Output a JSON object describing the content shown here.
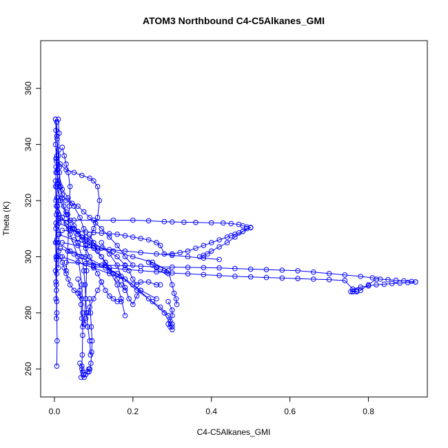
{
  "chart_data": {
    "type": "scatter",
    "title": "ATOM3 Northbound C4-C5Alkanes_GMI",
    "xlabel": "C4-C5Alkanes_GMI",
    "ylabel": "Theta (K)",
    "xlim": [
      -0.035,
      0.95
    ],
    "ylim": [
      250,
      377
    ],
    "xticks": [
      0.0,
      0.2,
      0.4,
      0.6,
      0.8
    ],
    "xtick_labels": [
      "0.0",
      "0.2",
      "0.4",
      "0.6",
      "0.8"
    ],
    "yticks": [
      260,
      280,
      300,
      320,
      340,
      360
    ],
    "ytick_labels": [
      "260",
      "280",
      "300",
      "320",
      "340",
      "360"
    ],
    "marker": "open-circle",
    "connected": true,
    "grid": false,
    "colors": {
      "series": "#0000ff",
      "axis": "#000000",
      "background": "#ffffff"
    },
    "series": [
      {
        "x": [
          0.003,
          0.006,
          0.01,
          0.013,
          0.016,
          0.02,
          0.024,
          0.03,
          0.034,
          0.04,
          0.05,
          0.06,
          0.07,
          0.08,
          0.09,
          0.1,
          0.11
        ],
        "y": [
          349,
          343,
          336,
          330,
          325,
          321,
          318,
          316,
          315,
          313,
          311,
          309,
          307,
          306,
          305,
          304,
          303
        ]
      },
      {
        "x": [
          0.004,
          0.007,
          0.012,
          0.02,
          0.03,
          0.045,
          0.06,
          0.075,
          0.09,
          0.105,
          0.12,
          0.14,
          0.16,
          0.18,
          0.2
        ],
        "y": [
          335,
          330,
          325,
          322,
          320,
          319,
          318,
          316,
          314,
          312,
          310,
          307,
          304,
          300,
          297
        ]
      },
      {
        "x": [
          0.005,
          0.015,
          0.03,
          0.05,
          0.07,
          0.09,
          0.1,
          0.11,
          0.115,
          0.11,
          0.1,
          0.09
        ],
        "y": [
          334,
          333,
          331,
          330,
          329,
          328,
          327,
          325,
          320,
          314,
          310,
          306
        ]
      },
      {
        "x": [
          0.004,
          0.01,
          0.02,
          0.035,
          0.05,
          0.065,
          0.075,
          0.08,
          0.082,
          0.08,
          0.075
        ],
        "y": [
          332,
          327,
          324,
          321,
          318,
          314,
          310,
          304,
          295,
          285,
          276
        ]
      },
      {
        "x": [
          0.006,
          0.015,
          0.03,
          0.045,
          0.06,
          0.07,
          0.075,
          0.078,
          0.08,
          0.082,
          0.085,
          0.09,
          0.092
        ],
        "y": [
          325,
          320,
          315,
          310,
          305,
          300,
          295,
          290,
          285,
          280,
          275,
          270,
          265
        ]
      },
      {
        "x": [
          0.008,
          0.02,
          0.04,
          0.06,
          0.07,
          0.072,
          0.072,
          0.071,
          0.07,
          0.068
        ],
        "y": [
          318,
          314,
          308,
          300,
          290,
          280,
          272,
          265,
          260,
          257
        ]
      },
      {
        "x": [
          0.01,
          0.03,
          0.06,
          0.09,
          0.12,
          0.14,
          0.16,
          0.17,
          0.18
        ],
        "y": [
          315,
          312,
          308,
          304,
          300,
          295,
          290,
          285,
          279
        ]
      },
      {
        "x": [
          0.012,
          0.04,
          0.08,
          0.12,
          0.16,
          0.18,
          0.19,
          0.2,
          0.21,
          0.22,
          0.24,
          0.26,
          0.27
        ],
        "y": [
          312,
          310,
          307,
          303,
          300,
          297,
          295,
          292,
          290,
          291,
          291,
          290,
          290
        ]
      },
      {
        "x": [
          0.01,
          0.05,
          0.1,
          0.15,
          0.2,
          0.25,
          0.29,
          0.3,
          0.305,
          0.31,
          0.312
        ],
        "y": [
          308,
          306,
          304,
          302,
          300,
          298,
          295,
          290,
          287,
          285,
          283
        ]
      },
      {
        "x": [
          0.01,
          0.04,
          0.08,
          0.12,
          0.16,
          0.2,
          0.24,
          0.28,
          0.3
        ],
        "y": [
          305,
          302,
          300,
          297,
          294,
          290,
          285,
          280,
          275
        ]
      },
      {
        "x": [
          0.015,
          0.05,
          0.09,
          0.13,
          0.17,
          0.21,
          0.25,
          0.27,
          0.29,
          0.3
        ],
        "y": [
          303,
          301,
          298,
          296,
          293,
          288,
          284,
          282,
          279,
          276
        ]
      },
      {
        "x": [
          0.02,
          0.06,
          0.1,
          0.14,
          0.18,
          0.22,
          0.26
        ],
        "y": [
          300,
          298,
          296,
          294,
          292,
          288,
          285
        ]
      },
      {
        "x": [
          0.01,
          0.05,
          0.1,
          0.15,
          0.2,
          0.24,
          0.28,
          0.3,
          0.33,
          0.36,
          0.4,
          0.43,
          0.45,
          0.47,
          0.48,
          0.49,
          0.5
        ],
        "y": [
          313,
          313,
          313,
          313,
          313,
          312.8,
          312.5,
          312.4,
          312.3,
          312.2,
          312.1,
          312,
          311.8,
          311.5,
          311,
          310.6,
          310.3
        ]
      },
      {
        "x": [
          0.5,
          0.49,
          0.48,
          0.47,
          0.46,
          0.45,
          0.44,
          0.42,
          0.4,
          0.38,
          0.36,
          0.34,
          0.32,
          0.3,
          0.28,
          0.27,
          0.26,
          0.24,
          0.22,
          0.2,
          0.18,
          0.16,
          0.14,
          0.12,
          0.1,
          0.08,
          0.06,
          0.04,
          0.02
        ],
        "y": [
          310.4,
          310,
          309,
          308.5,
          308,
          307.5,
          307,
          306,
          305,
          304,
          303,
          302,
          301.5,
          301,
          301,
          304,
          305,
          306,
          306.5,
          307,
          307.5,
          308,
          308.2,
          308.4,
          308.6,
          308.8,
          309,
          309.2,
          309.4
        ]
      },
      {
        "x": [
          0.02,
          0.06,
          0.1,
          0.14,
          0.18,
          0.22,
          0.26,
          0.3,
          0.34,
          0.38,
          0.42
        ],
        "y": [
          305,
          304,
          303,
          302.5,
          302,
          301.5,
          301,
          300.5,
          300,
          299.5,
          299
        ]
      },
      {
        "x": [
          0.03,
          0.08,
          0.13,
          0.18,
          0.22,
          0.26,
          0.3,
          0.34,
          0.38,
          0.42,
          0.46,
          0.5,
          0.54,
          0.58,
          0.62,
          0.66,
          0.7,
          0.74,
          0.78,
          0.81,
          0.83,
          0.85,
          0.87,
          0.89,
          0.91,
          0.92
        ],
        "y": [
          298,
          297.5,
          297,
          296.8,
          296.6,
          296.4,
          296.3,
          296.2,
          296.1,
          296,
          295.8,
          295.6,
          295.4,
          295.2,
          295,
          294.5,
          294,
          293.5,
          293,
          292.5,
          292,
          291.8,
          291.6,
          291.4,
          291.2,
          291
        ]
      },
      {
        "x": [
          0.92,
          0.9,
          0.88,
          0.86,
          0.84,
          0.82,
          0.8,
          0.78,
          0.76,
          0.74,
          0.7,
          0.66,
          0.62,
          0.58,
          0.54,
          0.5,
          0.46,
          0.42,
          0.38,
          0.34,
          0.3,
          0.26,
          0.22,
          0.18,
          0.14,
          0.1
        ],
        "y": [
          291,
          290.8,
          290.6,
          290.4,
          290.2,
          290,
          289.6,
          289.2,
          288.5,
          291.5,
          291.8,
          292,
          292.2,
          292.4,
          292.6,
          292.8,
          293,
          293.3,
          293.6,
          293.9,
          294.2,
          294.6,
          295,
          295.5,
          296,
          296.5
        ]
      },
      {
        "x": [
          0.82,
          0.8,
          0.78,
          0.77,
          0.76,
          0.755,
          0.76,
          0.77
        ],
        "y": [
          292,
          290,
          288,
          287.5,
          287.5,
          287.5,
          287.6,
          287.8
        ]
      },
      {
        "x": [
          0.003,
          0.004,
          0.003,
          0.005,
          0.004,
          0.003,
          0.004,
          0.005,
          0.004,
          0.003,
          0.004,
          0.003,
          0.005,
          0.004
        ],
        "y": [
          349,
          345,
          340,
          335,
          330,
          325,
          320,
          315,
          310,
          305,
          300,
          295,
          290,
          285
        ]
      },
      {
        "x": [
          0.006,
          0.007,
          0.006,
          0.008,
          0.007,
          0.006,
          0.008,
          0.007,
          0.006,
          0.007,
          0.006,
          0.005,
          0.006,
          0.007,
          0.006
        ],
        "y": [
          348,
          342,
          336,
          331,
          326,
          321,
          316,
          311,
          306,
          300,
          294,
          288,
          280,
          270,
          261
        ]
      },
      {
        "x": [
          0.01,
          0.012,
          0.011,
          0.013,
          0.012,
          0.011,
          0.01,
          0.012,
          0.011,
          0.01
        ],
        "y": [
          349,
          344,
          338,
          332,
          326,
          320,
          314,
          308,
          302,
          296
        ]
      },
      {
        "x": [
          0.003,
          0.005,
          0.004,
          0.006,
          0.005,
          0.004,
          0.006,
          0.005
        ],
        "y": [
          327,
          318,
          312,
          305,
          299,
          291,
          284,
          278
        ]
      },
      {
        "x": [
          0.02,
          0.025,
          0.03,
          0.035,
          0.04,
          0.038,
          0.036,
          0.034,
          0.03
        ],
        "y": [
          339,
          336,
          333,
          330,
          325,
          318,
          310,
          302,
          295
        ]
      },
      {
        "x": [
          0.05,
          0.06,
          0.07,
          0.08,
          0.09,
          0.1,
          0.11,
          0.12,
          0.13,
          0.14,
          0.15,
          0.16,
          0.17
        ],
        "y": [
          310,
          308,
          306,
          303,
          300,
          297,
          294,
          291,
          288,
          286,
          285,
          284,
          284
        ]
      },
      {
        "x": [
          0.09,
          0.1,
          0.11,
          0.12,
          0.13,
          0.14,
          0.15,
          0.16,
          0.17,
          0.18
        ],
        "y": [
          308,
          305,
          302,
          300,
          298,
          296,
          294,
          292,
          290,
          288
        ]
      },
      {
        "x": [
          0.12,
          0.14,
          0.16,
          0.17,
          0.18,
          0.19,
          0.2,
          0.21,
          0.22
        ],
        "y": [
          305,
          301,
          297,
          293,
          289,
          285,
          283,
          286,
          288
        ]
      },
      {
        "x": [
          0.29,
          0.3,
          0.3,
          0.295,
          0.29,
          0.295,
          0.3
        ],
        "y": [
          284,
          281,
          279,
          277,
          276,
          275,
          274
        ]
      },
      {
        "x": [
          0.09,
          0.092,
          0.094,
          0.096,
          0.095,
          0.093,
          0.09,
          0.088
        ],
        "y": [
          285,
          280,
          275,
          270,
          266,
          262,
          260,
          259
        ]
      },
      {
        "x": [
          0.065,
          0.07,
          0.072,
          0.074,
          0.076,
          0.08,
          0.084,
          0.088
        ],
        "y": [
          262,
          261,
          259,
          258,
          257,
          258,
          259,
          260
        ]
      },
      {
        "x": [
          0.06,
          0.065,
          0.068,
          0.07,
          0.072,
          0.075,
          0.08,
          0.085,
          0.09,
          0.1,
          0.11,
          0.12
        ],
        "y": [
          292,
          288,
          283,
          278,
          275,
          276,
          278,
          280,
          282,
          285,
          288,
          291
        ]
      },
      {
        "x": [
          0.015,
          0.02,
          0.025,
          0.03,
          0.035,
          0.04,
          0.05,
          0.06,
          0.065,
          0.07
        ],
        "y": [
          300,
          298,
          296,
          294,
          292,
          290,
          288,
          287,
          286,
          285
        ]
      },
      {
        "x": [
          0.24,
          0.25,
          0.26,
          0.27,
          0.28,
          0.285,
          0.29
        ],
        "y": [
          298,
          297,
          296,
          295.5,
          295,
          294.5,
          294
        ]
      },
      {
        "x": [
          0.37,
          0.38,
          0.39,
          0.4,
          0.42,
          0.44,
          0.46,
          0.48,
          0.5
        ],
        "y": [
          300,
          300.5,
          301,
          302,
          303.5,
          305,
          307,
          309,
          310.4
        ]
      }
    ]
  }
}
